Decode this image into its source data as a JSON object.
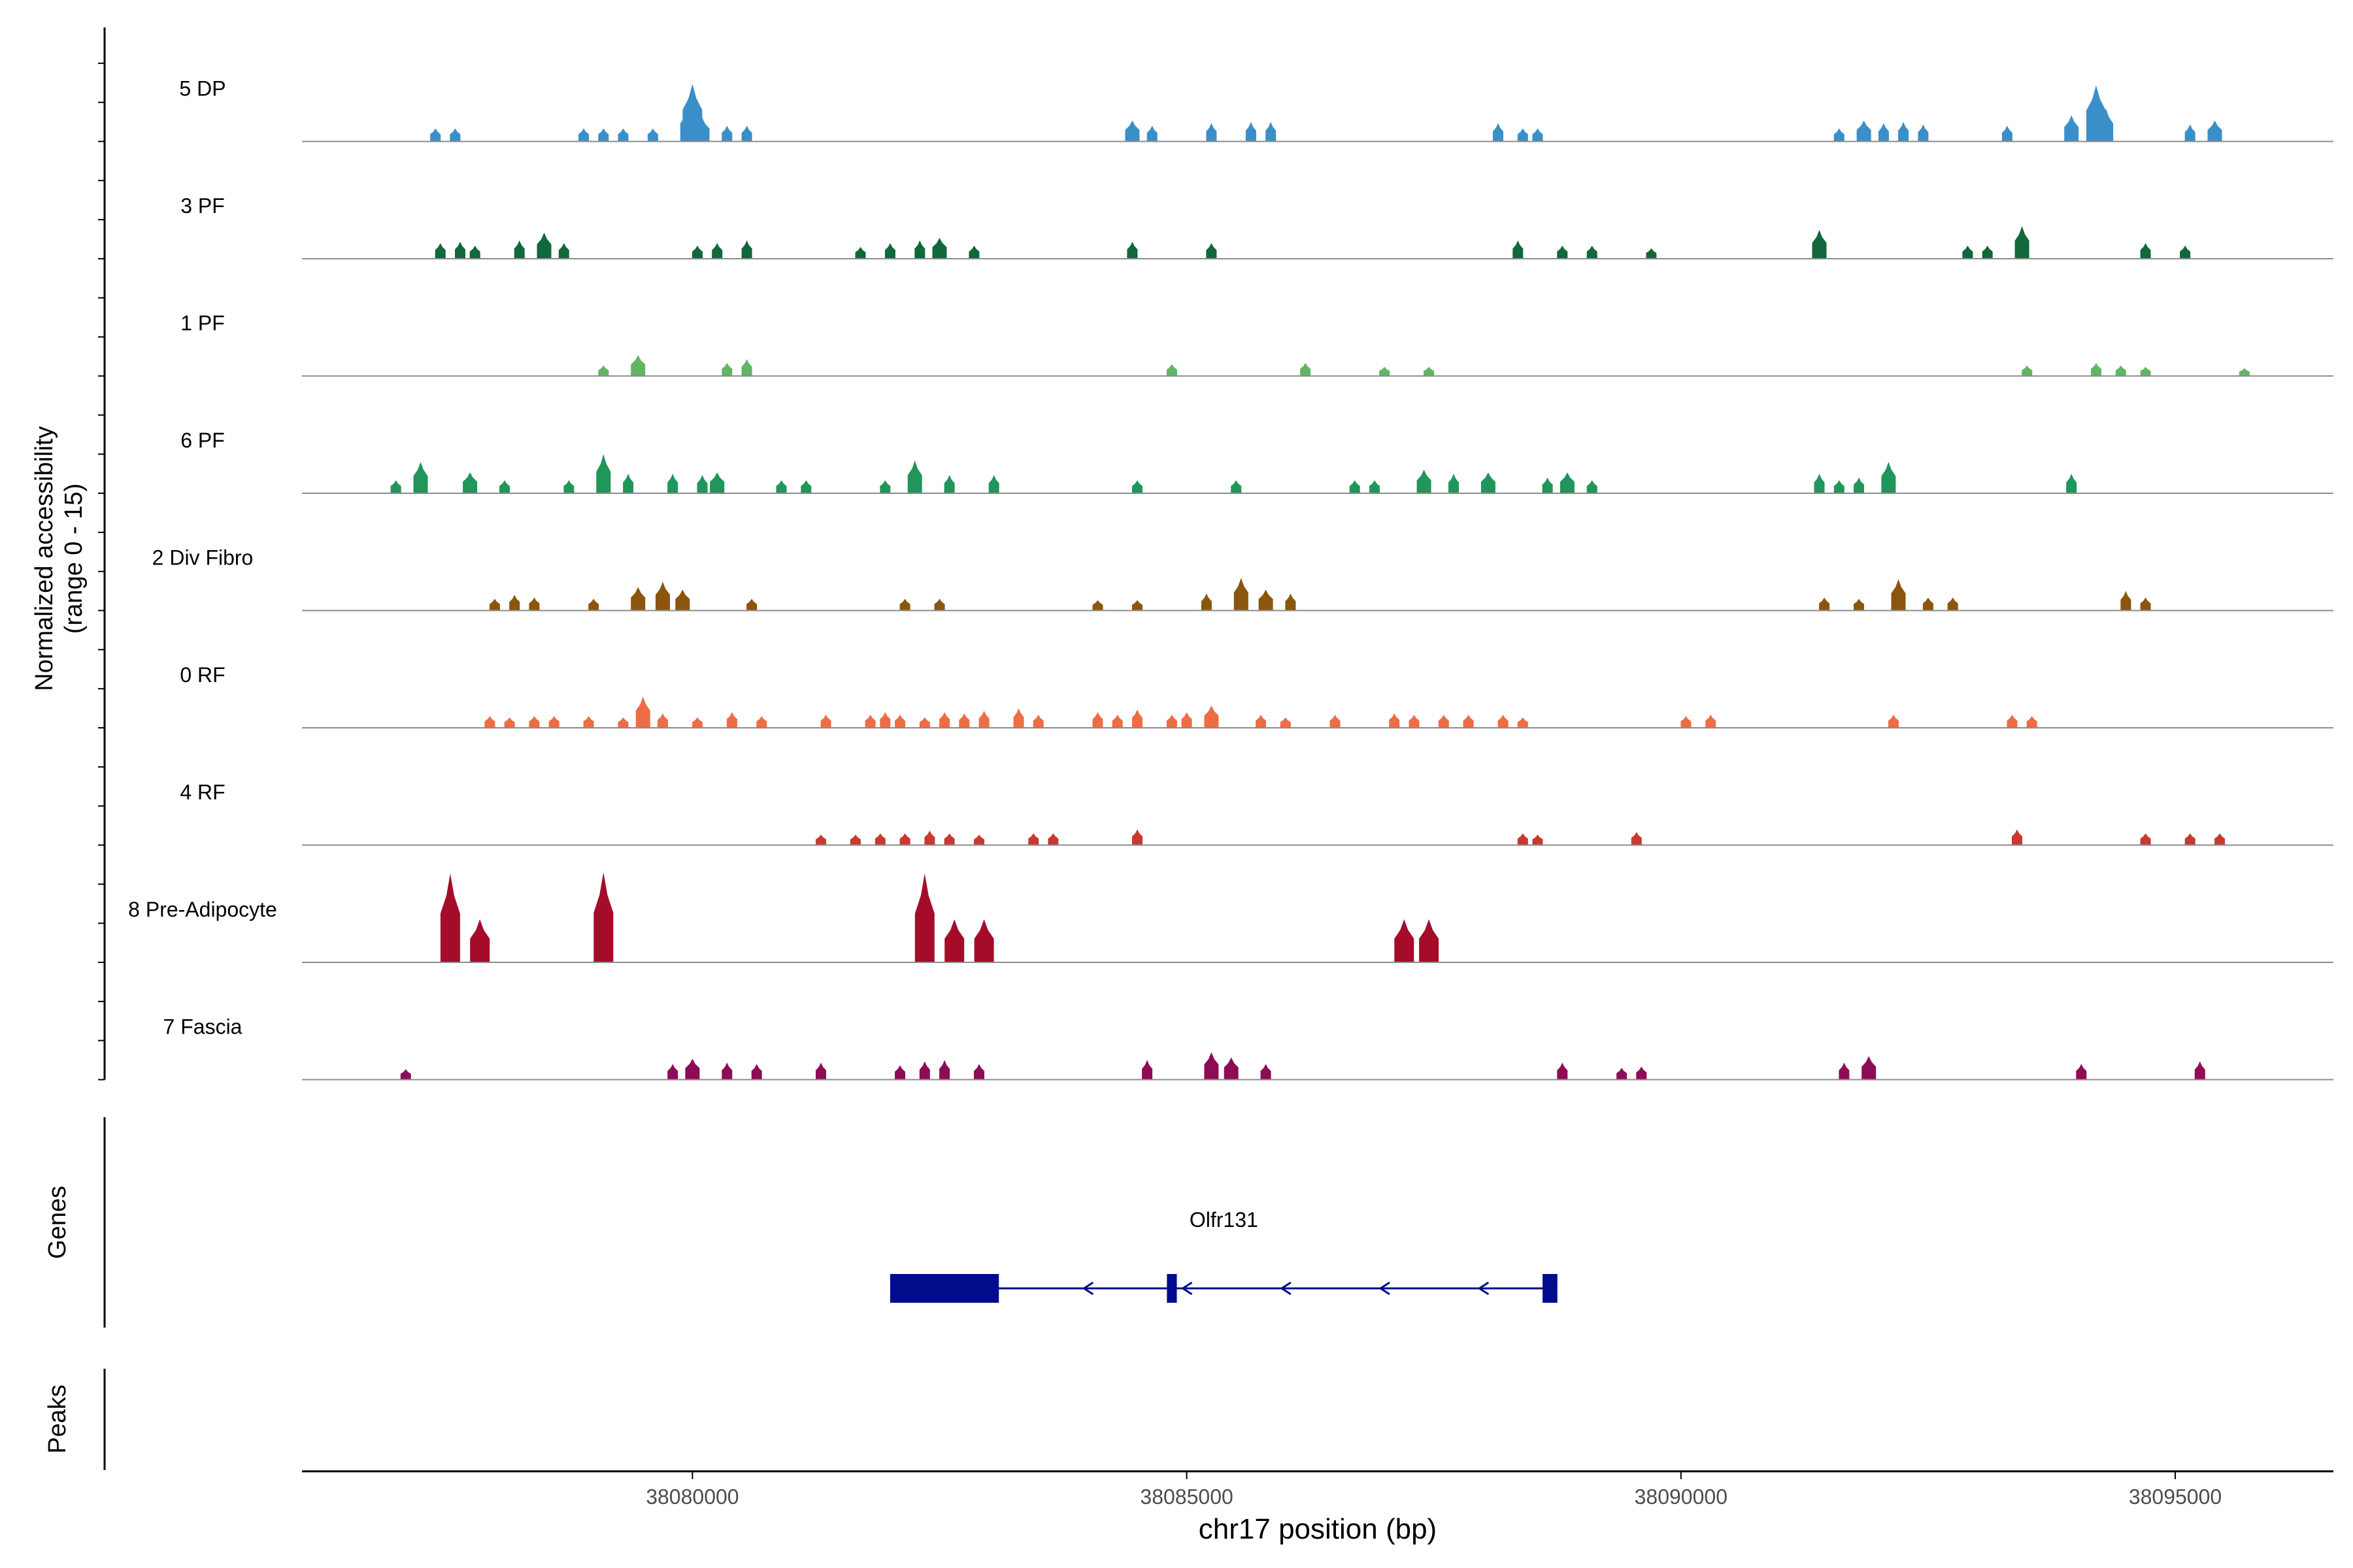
{
  "chart_data": {
    "type": "area",
    "title": "",
    "y_axis_label_line1": "Normalized accessibility",
    "y_axis_label_line2": "(range 0 - 15)",
    "ylim": [
      0,
      15
    ],
    "xlabel": "chr17 position (bp)",
    "xlim": [
      38076050,
      38096600
    ],
    "x_ticks": [
      38080000,
      38085000,
      38090000,
      38095000
    ],
    "x_tick_labels": [
      "38080000",
      "38085000",
      "38090000",
      "38095000"
    ],
    "tracks": [
      {
        "name": "5 DP",
        "color": "#3a8fc9",
        "peaks": [
          [
            38077400,
            1.0
          ],
          [
            38077600,
            1.0
          ],
          [
            38078900,
            1.0
          ],
          [
            38079100,
            1.0
          ],
          [
            38079300,
            1.0
          ],
          [
            38079600,
            1.0
          ],
          [
            38079950,
            2.5
          ],
          [
            38080000,
            4.4
          ],
          [
            38080100,
            1.8
          ],
          [
            38080350,
            1.2
          ],
          [
            38080550,
            1.2
          ],
          [
            38084450,
            1.6
          ],
          [
            38084650,
            1.2
          ],
          [
            38085250,
            1.4
          ],
          [
            38085650,
            1.5
          ],
          [
            38085850,
            1.5
          ],
          [
            38088150,
            1.4
          ],
          [
            38088400,
            1.0
          ],
          [
            38088550,
            1.0
          ],
          [
            38091600,
            1.0
          ],
          [
            38091850,
            1.6
          ],
          [
            38092050,
            1.4
          ],
          [
            38092250,
            1.5
          ],
          [
            38092450,
            1.3
          ],
          [
            38093300,
            1.2
          ],
          [
            38093950,
            2.0
          ],
          [
            38094200,
            4.3
          ],
          [
            38094300,
            2.5
          ],
          [
            38095150,
            1.3
          ],
          [
            38095400,
            1.6
          ]
        ]
      },
      {
        "name": "3 PF",
        "color": "#11683a",
        "peaks": [
          [
            38077450,
            1.2
          ],
          [
            38077650,
            1.3
          ],
          [
            38077800,
            1.0
          ],
          [
            38078250,
            1.4
          ],
          [
            38078500,
            2.0
          ],
          [
            38078700,
            1.2
          ],
          [
            38080050,
            1.0
          ],
          [
            38080250,
            1.2
          ],
          [
            38080550,
            1.4
          ],
          [
            38081700,
            0.9
          ],
          [
            38082000,
            1.2
          ],
          [
            38082300,
            1.4
          ],
          [
            38082500,
            1.6
          ],
          [
            38082850,
            1.0
          ],
          [
            38084450,
            1.3
          ],
          [
            38085250,
            1.2
          ],
          [
            38088350,
            1.4
          ],
          [
            38088800,
            1.0
          ],
          [
            38089100,
            1.0
          ],
          [
            38089700,
            0.8
          ],
          [
            38091400,
            2.2
          ],
          [
            38092900,
            1.0
          ],
          [
            38093100,
            1.0
          ],
          [
            38093450,
            2.5
          ],
          [
            38094700,
            1.2
          ],
          [
            38095100,
            1.0
          ]
        ]
      },
      {
        "name": "1 PF",
        "color": "#61b664",
        "peaks": [
          [
            38079100,
            0.8
          ],
          [
            38079450,
            1.6
          ],
          [
            38080350,
            1.0
          ],
          [
            38080550,
            1.3
          ],
          [
            38084850,
            0.9
          ],
          [
            38086200,
            1.0
          ],
          [
            38087000,
            0.7
          ],
          [
            38087450,
            0.7
          ],
          [
            38093500,
            0.8
          ],
          [
            38094200,
            1.0
          ],
          [
            38094450,
            0.8
          ],
          [
            38094700,
            0.7
          ],
          [
            38095700,
            0.6
          ]
        ]
      },
      {
        "name": "6 PF",
        "color": "#20965a",
        "peaks": [
          [
            38077000,
            1.0
          ],
          [
            38077250,
            2.4
          ],
          [
            38077750,
            1.6
          ],
          [
            38078100,
            1.0
          ],
          [
            38078750,
            1.0
          ],
          [
            38079100,
            3.0
          ],
          [
            38079350,
            1.5
          ],
          [
            38079800,
            1.5
          ],
          [
            38080100,
            1.4
          ],
          [
            38080250,
            1.6
          ],
          [
            38080900,
            1.0
          ],
          [
            38081150,
            1.0
          ],
          [
            38081950,
            1.0
          ],
          [
            38082250,
            2.5
          ],
          [
            38082600,
            1.4
          ],
          [
            38083050,
            1.4
          ],
          [
            38084500,
            1.0
          ],
          [
            38085500,
            1.0
          ],
          [
            38086700,
            1.0
          ],
          [
            38086900,
            1.0
          ],
          [
            38087400,
            1.8
          ],
          [
            38087700,
            1.5
          ],
          [
            38088050,
            1.6
          ],
          [
            38088650,
            1.2
          ],
          [
            38088850,
            1.6
          ],
          [
            38089100,
            1.0
          ],
          [
            38091400,
            1.5
          ],
          [
            38091600,
            1.0
          ],
          [
            38091800,
            1.2
          ],
          [
            38092100,
            2.4
          ],
          [
            38093950,
            1.5
          ]
        ]
      },
      {
        "name": "2 Div Fibro",
        "color": "#8a560e",
        "peaks": [
          [
            38078000,
            0.9
          ],
          [
            38078200,
            1.2
          ],
          [
            38078400,
            1.0
          ],
          [
            38079000,
            0.9
          ],
          [
            38079450,
            1.8
          ],
          [
            38079700,
            2.2
          ],
          [
            38079900,
            1.6
          ],
          [
            38080600,
            0.9
          ],
          [
            38082150,
            0.9
          ],
          [
            38082500,
            0.9
          ],
          [
            38084100,
            0.8
          ],
          [
            38084500,
            0.8
          ],
          [
            38085200,
            1.3
          ],
          [
            38085550,
            2.5
          ],
          [
            38085800,
            1.6
          ],
          [
            38086050,
            1.3
          ],
          [
            38091450,
            1.0
          ],
          [
            38091800,
            0.9
          ],
          [
            38092200,
            2.4
          ],
          [
            38092500,
            1.0
          ],
          [
            38092750,
            1.0
          ],
          [
            38094500,
            1.5
          ],
          [
            38094700,
            1.0
          ]
        ]
      },
      {
        "name": "0 RF",
        "color": "#ee6d45",
        "peaks": [
          [
            38077950,
            0.9
          ],
          [
            38078150,
            0.8
          ],
          [
            38078400,
            0.9
          ],
          [
            38078600,
            0.9
          ],
          [
            38078950,
            0.9
          ],
          [
            38079300,
            0.8
          ],
          [
            38079500,
            2.4
          ],
          [
            38079700,
            1.1
          ],
          [
            38080050,
            0.8
          ],
          [
            38080400,
            1.2
          ],
          [
            38080700,
            0.9
          ],
          [
            38081350,
            1.0
          ],
          [
            38081800,
            1.0
          ],
          [
            38081950,
            1.2
          ],
          [
            38082100,
            1.0
          ],
          [
            38082350,
            0.8
          ],
          [
            38082550,
            1.2
          ],
          [
            38082750,
            1.1
          ],
          [
            38082950,
            1.3
          ],
          [
            38083300,
            1.5
          ],
          [
            38083500,
            1.0
          ],
          [
            38084100,
            1.2
          ],
          [
            38084300,
            1.0
          ],
          [
            38084500,
            1.4
          ],
          [
            38084850,
            1.0
          ],
          [
            38085000,
            1.2
          ],
          [
            38085250,
            1.7
          ],
          [
            38085750,
            1.0
          ],
          [
            38086000,
            0.8
          ],
          [
            38086500,
            1.0
          ],
          [
            38087100,
            1.1
          ],
          [
            38087300,
            1.0
          ],
          [
            38087600,
            1.0
          ],
          [
            38087850,
            1.0
          ],
          [
            38088200,
            1.0
          ],
          [
            38088400,
            0.8
          ],
          [
            38090050,
            0.9
          ],
          [
            38090300,
            1.0
          ],
          [
            38092150,
            1.0
          ],
          [
            38093350,
            1.0
          ],
          [
            38093550,
            0.9
          ]
        ]
      },
      {
        "name": "4 RF",
        "color": "#c8392f",
        "peaks": [
          [
            38081300,
            0.8
          ],
          [
            38081650,
            0.8
          ],
          [
            38081900,
            0.9
          ],
          [
            38082150,
            0.9
          ],
          [
            38082400,
            1.1
          ],
          [
            38082600,
            0.9
          ],
          [
            38082900,
            0.8
          ],
          [
            38083450,
            0.9
          ],
          [
            38083650,
            0.9
          ],
          [
            38084500,
            1.2
          ],
          [
            38088400,
            0.9
          ],
          [
            38088550,
            0.8
          ],
          [
            38089550,
            1.0
          ],
          [
            38093400,
            1.2
          ],
          [
            38094700,
            0.9
          ],
          [
            38095150,
            0.9
          ],
          [
            38095450,
            0.9
          ]
        ]
      },
      {
        "name": "8 Pre-Adipocyte",
        "color": "#a50c2a",
        "peaks": [
          [
            38077550,
            6.8
          ],
          [
            38077850,
            3.3
          ],
          [
            38079100,
            6.9
          ],
          [
            38082350,
            6.8
          ],
          [
            38082650,
            3.3
          ],
          [
            38082950,
            3.3
          ],
          [
            38087200,
            3.3
          ],
          [
            38087450,
            3.3
          ]
        ]
      },
      {
        "name": "7 Fascia",
        "color": "#8e0c55",
        "peaks": [
          [
            38077100,
            0.8
          ],
          [
            38079800,
            1.2
          ],
          [
            38080000,
            1.6
          ],
          [
            38080350,
            1.3
          ],
          [
            38080650,
            1.2
          ],
          [
            38081300,
            1.3
          ],
          [
            38082100,
            1.1
          ],
          [
            38082350,
            1.4
          ],
          [
            38082550,
            1.5
          ],
          [
            38082900,
            1.2
          ],
          [
            38084600,
            1.5
          ],
          [
            38085250,
            2.1
          ],
          [
            38085450,
            1.7
          ],
          [
            38085800,
            1.2
          ],
          [
            38088800,
            1.3
          ],
          [
            38089400,
            0.9
          ],
          [
            38089600,
            1.0
          ],
          [
            38091650,
            1.3
          ],
          [
            38091900,
            1.8
          ],
          [
            38094050,
            1.2
          ],
          [
            38095250,
            1.4
          ]
        ]
      }
    ],
    "genes_label": "Genes",
    "gene": {
      "name": "Olfr131",
      "strand": "-",
      "start": 38082000,
      "end": 38088750,
      "exons": [
        [
          38082000,
          38083100
        ],
        [
          38084800,
          38084900
        ],
        [
          38088600,
          38088750
        ]
      ],
      "arrows": [
        38084000,
        38085000,
        38086000,
        38087000,
        38088000
      ]
    },
    "peaks_label": "Peaks",
    "colors": {
      "baseline": "#8c8c8c",
      "axis": "#000000",
      "gene": "#000c8c",
      "tick_label": "#4d4d4d"
    }
  }
}
